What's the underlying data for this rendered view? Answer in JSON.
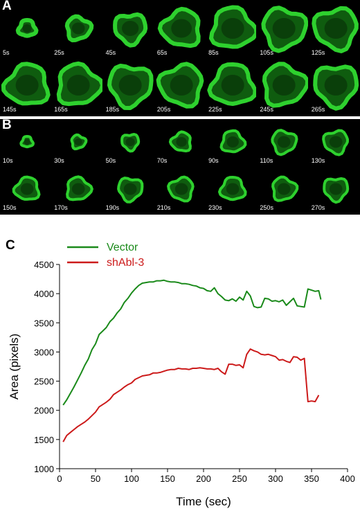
{
  "panel_a": {
    "letter": "A",
    "frames": [
      "5s",
      "25s",
      "45s",
      "65s",
      "85s",
      "105s",
      "125s",
      "145s",
      "165s",
      "185s",
      "205s",
      "225s",
      "245s",
      "265s"
    ],
    "cell_color": "#2ed12e"
  },
  "panel_b": {
    "letter": "B",
    "frames": [
      "10s",
      "30s",
      "50s",
      "70s",
      "90s",
      "110s",
      "130s",
      "150s",
      "170s",
      "190s",
      "210s",
      "230s",
      "250s",
      "270s"
    ],
    "cell_color": "#2ed12e"
  },
  "panel_c": {
    "letter": "C"
  },
  "chart_data": {
    "type": "line",
    "title": "",
    "xlabel": "Time (sec)",
    "ylabel": "Area (pixels)",
    "xlim": [
      0,
      400
    ],
    "ylim": [
      1000,
      4500
    ],
    "x_ticks": [
      0,
      50,
      100,
      150,
      200,
      250,
      300,
      350,
      400
    ],
    "y_ticks": [
      1000,
      1500,
      2000,
      2500,
      3000,
      3500,
      4000,
      4500
    ],
    "grid": false,
    "legend_position": "top-left",
    "series": [
      {
        "name": "Vector",
        "color": "#1a8a1a",
        "x": [
          5,
          10,
          15,
          20,
          25,
          30,
          35,
          40,
          45,
          50,
          55,
          60,
          65,
          70,
          75,
          80,
          85,
          90,
          95,
          100,
          105,
          110,
          115,
          120,
          125,
          130,
          135,
          140,
          145,
          150,
          155,
          160,
          165,
          170,
          175,
          180,
          185,
          190,
          195,
          200,
          205,
          210,
          215,
          220,
          225,
          230,
          235,
          240,
          245,
          250,
          255,
          260,
          265,
          270,
          275,
          280,
          285,
          290,
          295,
          300,
          305,
          310,
          315,
          320,
          325,
          330,
          335,
          340,
          345,
          350,
          355,
          360
        ],
        "y": [
          2090,
          2180,
          2290,
          2400,
          2520,
          2640,
          2770,
          2880,
          3040,
          3140,
          3300,
          3360,
          3420,
          3520,
          3580,
          3670,
          3740,
          3850,
          3920,
          4010,
          4080,
          4140,
          4180,
          4190,
          4200,
          4200,
          4220,
          4220,
          4230,
          4210,
          4200,
          4200,
          4190,
          4170,
          4170,
          4160,
          4140,
          4130,
          4100,
          4090,
          4050,
          4040,
          4100,
          4000,
          3950,
          3890,
          3880,
          3910,
          3870,
          3940,
          3890,
          4040,
          3960,
          3780,
          3760,
          3770,
          3920,
          3910,
          3870,
          3880,
          3860,
          3890,
          3800,
          3860,
          3920,
          3790,
          3780,
          3770,
          4080,
          4060,
          4040,
          4050
        ],
        "_y_note_end": 3900
      },
      {
        "name": "shAbl-3",
        "color": "#cc1a1a",
        "x": [
          5,
          10,
          15,
          20,
          25,
          30,
          35,
          40,
          45,
          50,
          55,
          60,
          65,
          70,
          75,
          80,
          85,
          90,
          95,
          100,
          105,
          110,
          115,
          120,
          125,
          130,
          135,
          140,
          145,
          150,
          155,
          160,
          165,
          170,
          175,
          180,
          185,
          190,
          195,
          200,
          205,
          210,
          215,
          220,
          225,
          230,
          235,
          240,
          245,
          250,
          255,
          260,
          265,
          270,
          275,
          280,
          285,
          290,
          295,
          300,
          305,
          310,
          315,
          320,
          325,
          330,
          335,
          340,
          345,
          350,
          355,
          360
        ],
        "y": [
          1460,
          1570,
          1620,
          1670,
          1720,
          1760,
          1800,
          1850,
          1910,
          1970,
          2060,
          2100,
          2140,
          2190,
          2270,
          2310,
          2350,
          2400,
          2440,
          2470,
          2530,
          2560,
          2590,
          2600,
          2610,
          2640,
          2640,
          2650,
          2670,
          2690,
          2700,
          2700,
          2720,
          2710,
          2710,
          2700,
          2720,
          2720,
          2730,
          2720,
          2710,
          2710,
          2700,
          2720,
          2660,
          2620,
          2790,
          2790,
          2770,
          2780,
          2730,
          2960,
          3050,
          3020,
          3000,
          2960,
          2950,
          2960,
          2940,
          2920,
          2860,
          2870,
          2840,
          2820,
          2920,
          2910,
          2860,
          2890,
          2150,
          2160,
          2150,
          2260
        ]
      }
    ]
  }
}
